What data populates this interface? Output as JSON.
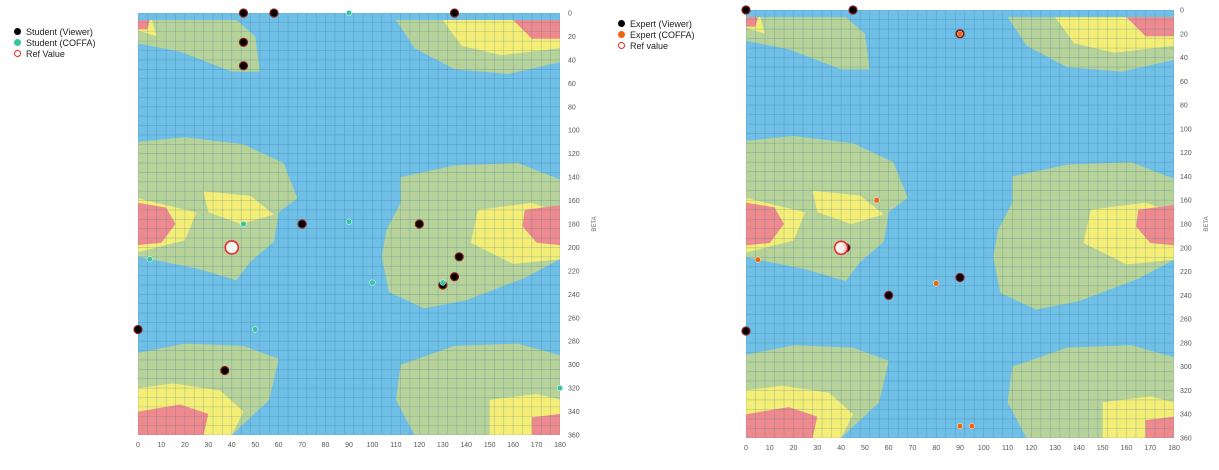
{
  "colors": {
    "blue": "#6fbfe6",
    "green": "#b7d39a",
    "yellow": "#f4ee76",
    "red": "#ee8a8e",
    "grid": "#2d6f9a",
    "viewer": "#000000",
    "viewer_ring": "#8a1c1c",
    "student_coffa": "#34c6a0",
    "expert_coffa": "#f0640c",
    "ref": "#e8282e"
  },
  "chart_data": [
    {
      "type": "scatter",
      "x_ticks": [
        0,
        10,
        20,
        30,
        40,
        50,
        60,
        70,
        80,
        90,
        100,
        110,
        120,
        130,
        140,
        150,
        160,
        170,
        180
      ],
      "y_ticks": [
        0,
        20,
        40,
        60,
        80,
        100,
        120,
        140,
        160,
        180,
        200,
        220,
        240,
        260,
        280,
        300,
        320,
        340,
        360
      ],
      "xlim": [
        0,
        180
      ],
      "ylim": [
        0,
        360
      ],
      "y_inverted": true,
      "ylabel": "BETA",
      "background": "heatmap contour (blue / green / yellow / red)",
      "legend": [
        "Student (Viewer)",
        "Student (COFFA)",
        "Ref Value"
      ],
      "series": [
        {
          "name": "Student (Viewer)",
          "color": "#000000",
          "points": [
            [
              45,
              0
            ],
            [
              58,
              0
            ],
            [
              135,
              0
            ],
            [
              45,
              25
            ],
            [
              45,
              45
            ],
            [
              70,
              180
            ],
            [
              120,
              180
            ],
            [
              137,
              208
            ],
            [
              135,
              225
            ],
            [
              130,
              232
            ],
            [
              37,
              305
            ],
            [
              0,
              270
            ]
          ]
        },
        {
          "name": "Student (COFFA)",
          "color": "#34c6a0",
          "points": [
            [
              90,
              0
            ],
            [
              90,
              178
            ],
            [
              45,
              180
            ],
            [
              5,
              210
            ],
            [
              100,
              230
            ],
            [
              130,
              230
            ],
            [
              50,
              270
            ],
            [
              180,
              320
            ]
          ]
        },
        {
          "name": "Ref Value",
          "color": "#e8282e",
          "points": [
            [
              40,
              200
            ]
          ]
        }
      ]
    },
    {
      "type": "scatter",
      "x_ticks": [
        0,
        10,
        20,
        30,
        40,
        50,
        60,
        70,
        80,
        90,
        100,
        110,
        120,
        130,
        140,
        150,
        160,
        170,
        180
      ],
      "y_ticks": [
        0,
        20,
        40,
        60,
        80,
        100,
        120,
        140,
        160,
        180,
        200,
        220,
        240,
        260,
        280,
        300,
        320,
        340,
        360
      ],
      "xlim": [
        0,
        180
      ],
      "ylim": [
        0,
        360
      ],
      "y_inverted": true,
      "ylabel": "BETA",
      "background": "heatmap contour (blue / green / yellow / red)",
      "legend": [
        "Expert (Viewer)",
        "Expert (COFFA)",
        "Ref value"
      ],
      "series": [
        {
          "name": "Expert (Viewer)",
          "color": "#000000",
          "points": [
            [
              0,
              0
            ],
            [
              45,
              0
            ],
            [
              90,
              20
            ],
            [
              42,
              200
            ],
            [
              60,
              240
            ],
            [
              90,
              225
            ],
            [
              0,
              270
            ]
          ]
        },
        {
          "name": "Expert (COFFA)",
          "color": "#f0640c",
          "points": [
            [
              90,
              20
            ],
            [
              55,
              160
            ],
            [
              5,
              210
            ],
            [
              40,
              200
            ],
            [
              80,
              230
            ],
            [
              90,
              350
            ],
            [
              95,
              350
            ]
          ]
        },
        {
          "name": "Ref value",
          "color": "#e8282e",
          "points": [
            [
              40,
              200
            ]
          ]
        }
      ]
    }
  ]
}
